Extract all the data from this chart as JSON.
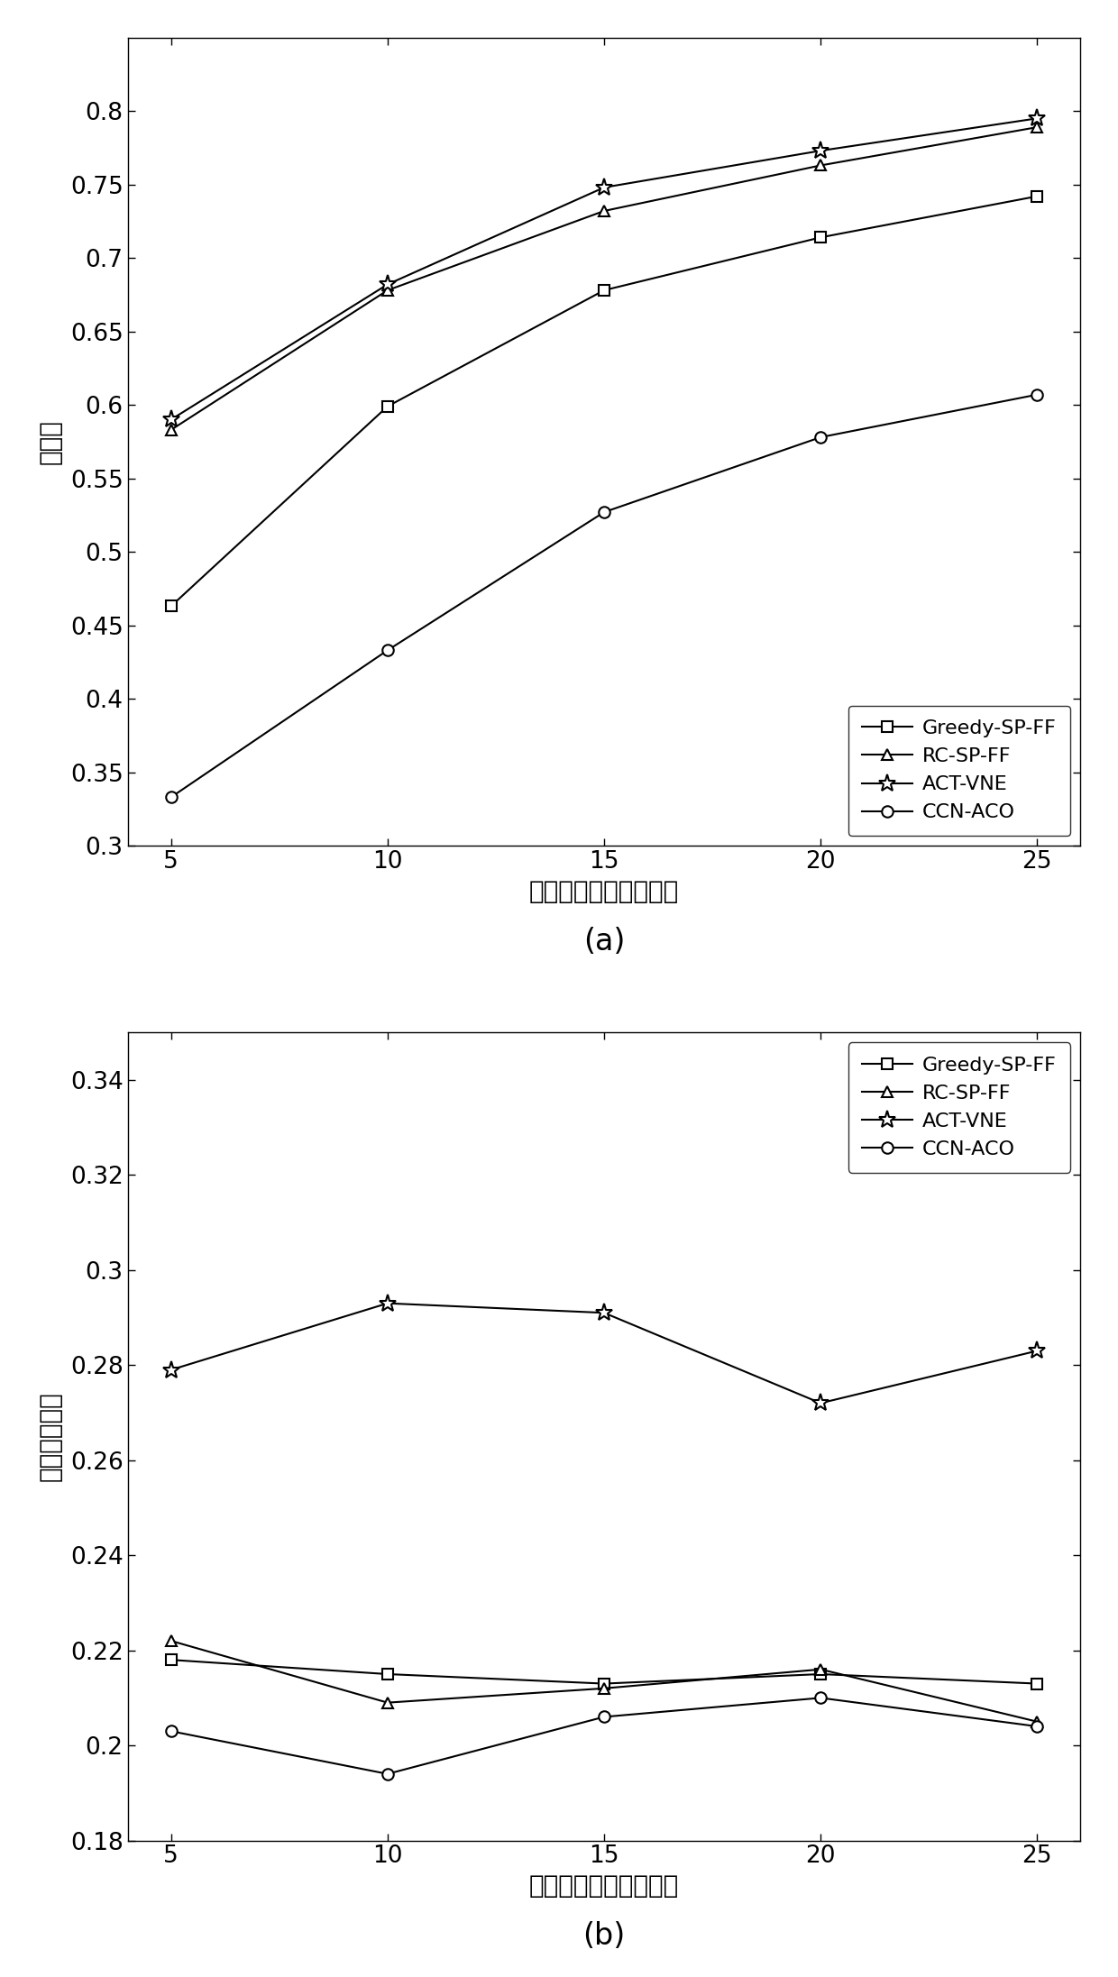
{
  "x": [
    5,
    10,
    15,
    20,
    25
  ],
  "chart_a": {
    "title": "(a)",
    "ylabel": "阻塞率",
    "xlabel": "虚拟网络平均到达速率",
    "ylim": [
      0.3,
      0.85
    ],
    "yticks": [
      0.3,
      0.35,
      0.4,
      0.45,
      0.5,
      0.55,
      0.6,
      0.65,
      0.7,
      0.75,
      0.8
    ],
    "ytick_labels": [
      "0.3",
      "0.35",
      "0.4",
      "0.45",
      "0.5",
      "0.55",
      "0.6",
      "0.65",
      "0.7",
      "0.75",
      "0.8"
    ],
    "series": {
      "Greedy-SP-FF": {
        "marker": "s",
        "values": [
          0.463,
          0.599,
          0.678,
          0.714,
          0.742
        ]
      },
      "RC-SP-FF": {
        "marker": "^",
        "values": [
          0.583,
          0.678,
          0.732,
          0.763,
          0.789
        ]
      },
      "ACT-VNE": {
        "marker": "*",
        "values": [
          0.59,
          0.682,
          0.748,
          0.773,
          0.795
        ]
      },
      "CCN-ACO": {
        "marker": "o",
        "values": [
          0.333,
          0.433,
          0.527,
          0.578,
          0.607
        ]
      }
    },
    "legend_loc": "lower right"
  },
  "chart_b": {
    "title": "(b)",
    "ylabel": "链路负载平衡",
    "xlabel": "虚拟网络平均到达速率",
    "ylim": [
      0.18,
      0.35
    ],
    "yticks": [
      0.18,
      0.2,
      0.22,
      0.24,
      0.26,
      0.28,
      0.3,
      0.32,
      0.34
    ],
    "ytick_labels": [
      "0.18",
      "0.2",
      "0.22",
      "0.24",
      "0.26",
      "0.28",
      "0.3",
      "0.32",
      "0.34"
    ],
    "series": {
      "Greedy-SP-FF": {
        "marker": "s",
        "values": [
          0.218,
          0.215,
          0.213,
          0.215,
          0.213
        ]
      },
      "RC-SP-FF": {
        "marker": "^",
        "values": [
          0.222,
          0.209,
          0.212,
          0.216,
          0.205
        ]
      },
      "ACT-VNE": {
        "marker": "*",
        "values": [
          0.279,
          0.293,
          0.291,
          0.272,
          0.283
        ]
      },
      "CCN-ACO": {
        "marker": "o",
        "values": [
          0.203,
          0.194,
          0.206,
          0.21,
          0.204
        ]
      }
    },
    "legend_loc": "upper right"
  },
  "line_color": "#000000",
  "legend_order": [
    "Greedy-SP-FF",
    "RC-SP-FF",
    "ACT-VNE",
    "CCN-ACO"
  ]
}
